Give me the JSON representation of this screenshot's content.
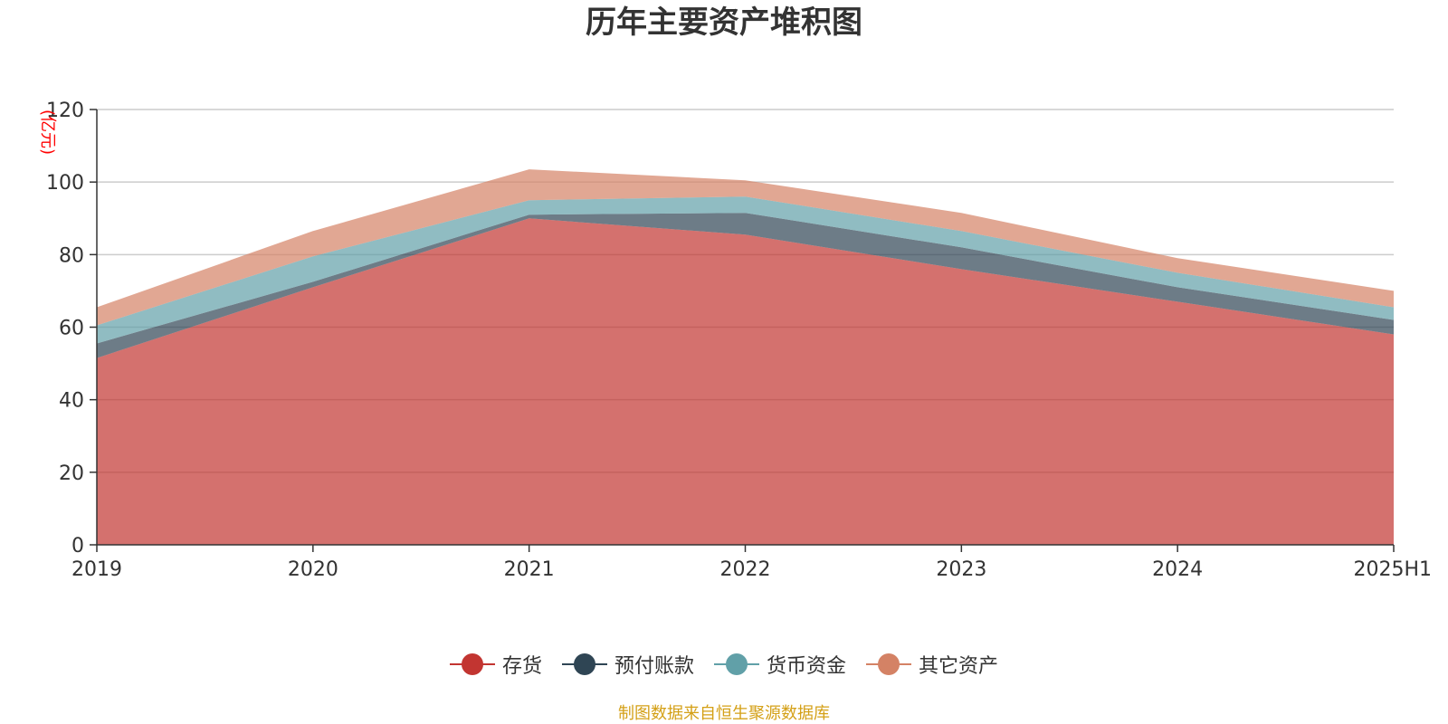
{
  "title": "历年主要资产堆积图",
  "source_note": "制图数据来自恒生聚源数据库",
  "chart_data": {
    "type": "area",
    "stacked": true,
    "title": "历年主要资产堆积图",
    "ylabel": "(亿元)",
    "xlabel": "",
    "categories": [
      "2019",
      "2020",
      "2021",
      "2022",
      "2023",
      "2024",
      "2025H1"
    ],
    "ylim": [
      0,
      120
    ],
    "yticks": [
      0,
      20,
      40,
      60,
      80,
      100,
      120
    ],
    "grid": true,
    "legend_position": "bottom",
    "series": [
      {
        "name": "存货",
        "values": [
          51.5,
          71,
          90,
          85.5,
          76,
          67,
          58
        ],
        "color": "#c23531"
      },
      {
        "name": "预付账款",
        "values": [
          4,
          1.5,
          1,
          6,
          6,
          4,
          4
        ],
        "color": "#2f4554"
      },
      {
        "name": "货币资金",
        "values": [
          5,
          7,
          4,
          4.5,
          4.5,
          4,
          3.5
        ],
        "color": "#61a0a8"
      },
      {
        "name": "其它资产",
        "values": [
          5,
          7,
          8.5,
          4.5,
          5,
          4,
          4.5
        ],
        "color": "#d48265"
      }
    ]
  }
}
